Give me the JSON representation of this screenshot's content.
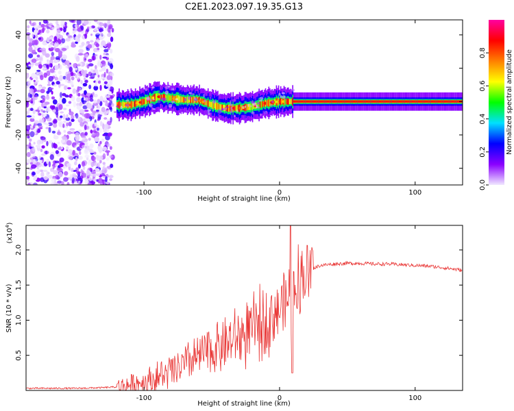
{
  "figure": {
    "title": "C2E1.2023.097.19.35.G13"
  },
  "chart_data": [
    {
      "type": "heatmap",
      "title": "C2E1.2023.097.19.35.G13",
      "xlabel": "Height of straight line (km)",
      "ylabel": "Frequency (Hz)",
      "xlim": [
        -187,
        135
      ],
      "ylim": [
        -50,
        49
      ],
      "xticks": [
        -100,
        0,
        100
      ],
      "xtick_labels": [
        "-100",
        "0",
        "100"
      ],
      "yticks": [
        -40,
        -20,
        0,
        20,
        40
      ],
      "ytick_labels": [
        "-40",
        "-20",
        "0",
        "20",
        "40"
      ],
      "noise_region_x": [
        -187,
        -123
      ],
      "signal_trace": {
        "x": [
          -120,
          -110,
          -100,
          -90,
          -80,
          -70,
          -60,
          -50,
          -40,
          -30,
          -20,
          -10,
          0,
          10,
          20,
          50,
          100,
          135
        ],
        "y": [
          -2,
          -2,
          0,
          3,
          2,
          1,
          1,
          -2,
          -4,
          -4,
          -3,
          -1,
          0,
          0,
          0,
          0,
          0,
          0
        ]
      },
      "colorbar": {
        "label": "Normalized spectral amplitude",
        "range": [
          0.0,
          1.0
        ],
        "ticks": [
          0.0,
          0.2,
          0.4,
          0.6,
          0.8
        ],
        "tick_labels": [
          "0.0",
          "0.2",
          "0.4",
          "0.6",
          "0.8"
        ],
        "colors": [
          "#f0e8ff",
          "#8a00ff",
          "#0000ff",
          "#00e0ff",
          "#00ff00",
          "#ffff00",
          "#ff8000",
          "#ff0000",
          "#ff00a0"
        ]
      }
    },
    {
      "type": "line",
      "xlabel": "Height of straight line (km)",
      "ylabel": "SNR (10 * v/v)",
      "exponent_label": "(x10",
      "exponent_power": "4",
      "exponent_close": ")",
      "xlim": [
        -187,
        135
      ],
      "ylim": [
        0,
        2.35
      ],
      "xticks": [
        -100,
        0,
        100
      ],
      "xtick_labels": [
        "-100",
        "0",
        "100"
      ],
      "yticks": [
        0.5,
        1.0,
        1.5,
        2.0
      ],
      "ytick_labels": [
        "0.5",
        "1.0",
        "1.5",
        "2.0"
      ],
      "series": [
        {
          "name": "SNR",
          "color": "#e8302f",
          "x": [
            -187,
            -170,
            -150,
            -130,
            -120,
            -110,
            -100,
            -90,
            -80,
            -70,
            -60,
            -50,
            -40,
            -30,
            -20,
            -10,
            0,
            5,
            8,
            10,
            15,
            20,
            25,
            30,
            40,
            50,
            60,
            70,
            80,
            90,
            100,
            110,
            120,
            135
          ],
          "y": [
            0.03,
            0.03,
            0.03,
            0.04,
            0.05,
            0.08,
            0.12,
            0.18,
            0.26,
            0.36,
            0.48,
            0.58,
            0.66,
            0.75,
            0.85,
            1.0,
            1.18,
            1.28,
            1.35,
            1.45,
            1.58,
            1.68,
            1.74,
            1.78,
            1.8,
            1.81,
            1.81,
            1.8,
            1.8,
            1.79,
            1.78,
            1.77,
            1.75,
            1.71
          ]
        }
      ]
    }
  ]
}
